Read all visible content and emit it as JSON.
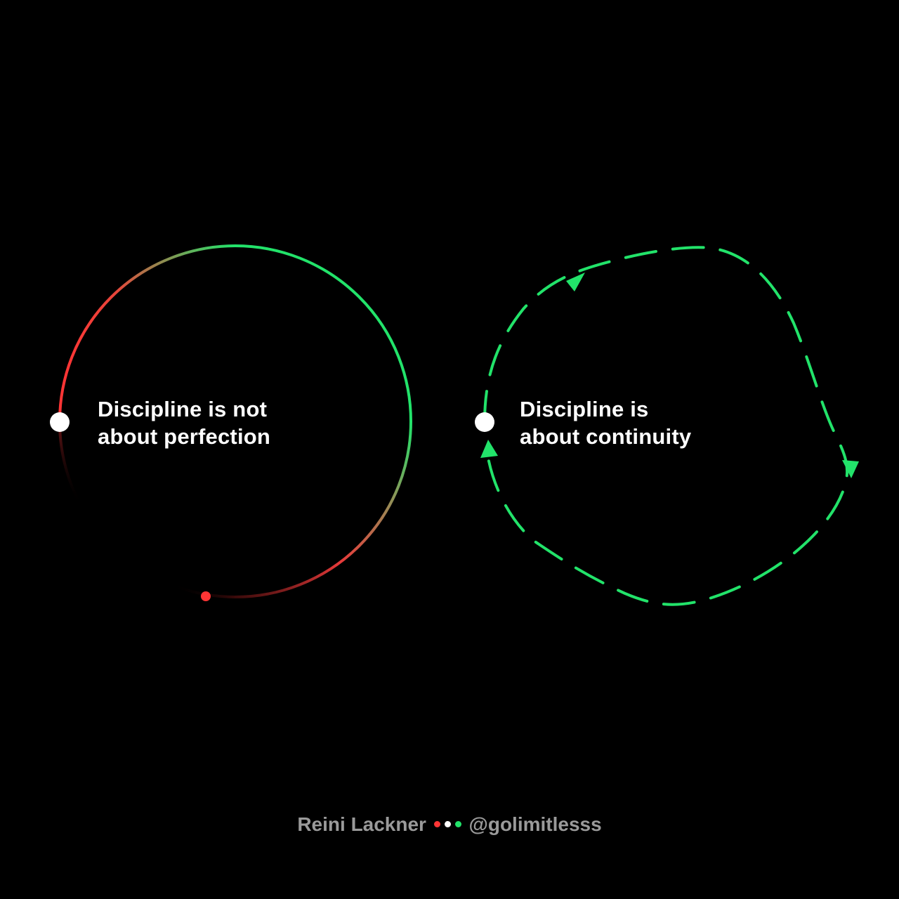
{
  "colors": {
    "background": "#000000",
    "green": "#22e36a",
    "red": "#ff3535",
    "white": "#ffffff",
    "footer_text": "#9a9a9a"
  },
  "left_panel": {
    "caption_line1": "Discipline is not",
    "caption_line2": "about perfection",
    "loop_style": "solid gradient ring, red fading to green, with a gap (broken chain)"
  },
  "right_panel": {
    "caption_line1": "Discipline is",
    "caption_line2": "about continuity",
    "loop_style": "dashed green irregular loop with direction arrows"
  },
  "footer": {
    "author": "Reini Lackner",
    "handle": "@golimitlesss",
    "dots": [
      "red",
      "white",
      "green"
    ]
  }
}
